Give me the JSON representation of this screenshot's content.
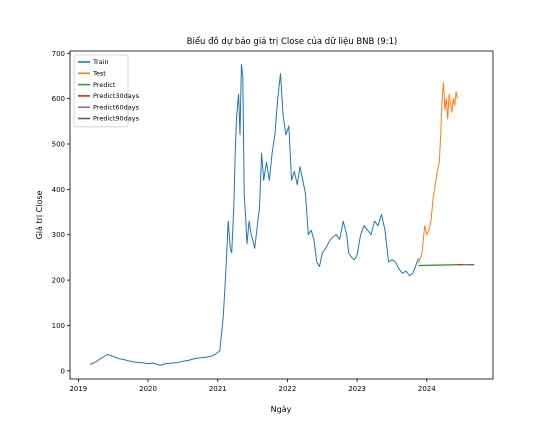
{
  "chart_data": {
    "type": "line",
    "title": "Biểu đồ dự báo giá trị Close của dữ liệu BNB (9:1)",
    "xlabel": "Ngày",
    "ylabel": "Giá trị Close",
    "xlim": [
      2018.88,
      2024.95
    ],
    "ylim": [
      -18,
      705
    ],
    "x_ticks": [
      2019,
      2020,
      2021,
      2022,
      2023,
      2024
    ],
    "x_tick_labels": [
      "2019",
      "2020",
      "2021",
      "2022",
      "2023",
      "2024"
    ],
    "y_ticks": [
      0,
      100,
      200,
      300,
      400,
      500,
      600,
      700
    ],
    "y_tick_labels": [
      "0",
      "100",
      "200",
      "300",
      "400",
      "500",
      "600",
      "700"
    ],
    "grid": false,
    "legend_position": "top-left",
    "series": [
      {
        "name": "Train",
        "color": "#1f77b4",
        "x": [
          2019.17,
          2019.25,
          2019.33,
          2019.42,
          2019.5,
          2019.58,
          2019.67,
          2019.75,
          2019.83,
          2019.92,
          2020.0,
          2020.08,
          2020.17,
          2020.2,
          2020.25,
          2020.33,
          2020.42,
          2020.5,
          2020.58,
          2020.67,
          2020.75,
          2020.83,
          2020.92,
          2020.97,
          2021.03,
          2021.08,
          2021.12,
          2021.15,
          2021.18,
          2021.2,
          2021.23,
          2021.25,
          2021.27,
          2021.3,
          2021.32,
          2021.34,
          2021.36,
          2021.38,
          2021.4,
          2021.42,
          2021.45,
          2021.48,
          2021.5,
          2021.53,
          2021.56,
          2021.6,
          2021.63,
          2021.66,
          2021.7,
          2021.74,
          2021.78,
          2021.82,
          2021.86,
          2021.9,
          2021.94,
          2021.98,
          2022.02,
          2022.06,
          2022.1,
          2022.14,
          2022.18,
          2022.22,
          2022.26,
          2022.3,
          2022.34,
          2022.38,
          2022.42,
          2022.46,
          2022.5,
          2022.55,
          2022.6,
          2022.65,
          2022.7,
          2022.75,
          2022.8,
          2022.85,
          2022.88,
          2022.92,
          2022.96,
          2023.0,
          2023.05,
          2023.1,
          2023.15,
          2023.2,
          2023.25,
          2023.3,
          2023.35,
          2023.4,
          2023.45,
          2023.5,
          2023.55,
          2023.6,
          2023.65,
          2023.7,
          2023.75,
          2023.8,
          2023.85,
          2023.88
        ],
        "values": [
          14,
          20,
          28,
          36,
          32,
          27,
          24,
          21,
          19,
          18,
          16,
          17,
          12,
          13,
          16,
          17,
          18,
          21,
          23,
          27,
          29,
          30,
          33,
          37,
          44,
          120,
          230,
          330,
          270,
          260,
          360,
          480,
          560,
          610,
          520,
          675,
          650,
          390,
          340,
          280,
          330,
          300,
          290,
          270,
          310,
          360,
          480,
          420,
          460,
          420,
          480,
          520,
          600,
          655,
          560,
          520,
          540,
          420,
          440,
          410,
          450,
          420,
          390,
          300,
          310,
          290,
          240,
          230,
          260,
          270,
          285,
          295,
          300,
          290,
          330,
          300,
          260,
          250,
          245,
          255,
          300,
          320,
          310,
          300,
          330,
          320,
          345,
          310,
          240,
          245,
          240,
          225,
          215,
          220,
          210,
          215,
          235,
          248
        ]
      },
      {
        "name": "Test",
        "color": "#ff7f0e",
        "x": [
          2023.88,
          2023.93,
          2023.97,
          2024.0,
          2024.03,
          2024.06,
          2024.09,
          2024.12,
          2024.15,
          2024.18,
          2024.2,
          2024.22,
          2024.24,
          2024.26,
          2024.28,
          2024.3,
          2024.32,
          2024.34,
          2024.36,
          2024.38,
          2024.4,
          2024.42,
          2024.44
        ],
        "values": [
          238,
          258,
          320,
          300,
          310,
          330,
          380,
          410,
          440,
          460,
          520,
          600,
          635,
          575,
          600,
          555,
          610,
          590,
          570,
          600,
          585,
          615,
          600
        ]
      },
      {
        "name": "Predict",
        "color": "#2ca02c",
        "x": [
          2023.88,
          2024.44
        ],
        "values": [
          232,
          234
        ]
      },
      {
        "name": "Predict30days",
        "color": "#d62728",
        "x": [
          2024.44,
          2024.52
        ],
        "values": [
          234,
          234
        ]
      },
      {
        "name": "Predict60days",
        "color": "#9467bd",
        "x": [
          2024.52,
          2024.6
        ],
        "values": [
          234,
          234
        ]
      },
      {
        "name": "Predict90days",
        "color": "#8c564b",
        "x": [
          2024.6,
          2024.68
        ],
        "values": [
          234,
          234
        ]
      }
    ]
  }
}
